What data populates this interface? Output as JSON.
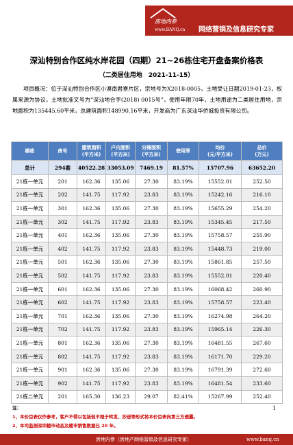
{
  "header": {
    "logo": "房地内参",
    "url": "www.BANQ.cn",
    "slogan": "网络营销及信息研究专家"
  },
  "title": "深汕特别合作区纯水岸花园（四期）21~26栋住宅开盘备案价格表",
  "subtitle": "（二类居住用地　2021-11-15）",
  "overview": "项目概况：位于深汕特别合作区小漠南君寮片区，宗地号为X2018-0005，土地受让日期2019-01-23，权属来源为协议，土地批准文号为“深汕地合字(2018) 0015号”，使用年限70年，土地用途为二类居住用地，宗地面积为135445.60平米，总建筑面积148990.16平米，开发商为广东深汕华侨城投资有限公司。",
  "table": {
    "columns": [
      "楼栋",
      "房号",
      "建筑面积\n(平方米)",
      "户内面积\n(平方米)",
      "分摊面积\n(平方米)",
      "使用率",
      "均价\n(元/平方米)",
      "总价\n(万元)"
    ],
    "total": [
      "总计",
      "294套",
      "40522.28",
      "33053.09",
      "7469.19",
      "81.57%",
      "15707.96",
      "63652.20"
    ],
    "rows": [
      [
        "21栋一单元",
        "201",
        "162.36",
        "135.06",
        "27.30",
        "83.19%",
        "15552.01",
        "252.50"
      ],
      [
        "21栋一单元",
        "202",
        "141.75",
        "117.92",
        "23.83",
        "83.19%",
        "15242.16",
        "216.10"
      ],
      [
        "21栋一单元",
        "301",
        "162.36",
        "135.06",
        "27.30",
        "83.19%",
        "15655.29",
        "254.20"
      ],
      [
        "21栋一单元",
        "302",
        "141.75",
        "117.92",
        "23.83",
        "83.19%",
        "15345.45",
        "217.50"
      ],
      [
        "21栋一单元",
        "401",
        "162.36",
        "135.06",
        "27.30",
        "83.19%",
        "15758.57",
        "255.90"
      ],
      [
        "21栋一单元",
        "402",
        "141.75",
        "117.92",
        "23.83",
        "83.19%",
        "15448.73",
        "219.00"
      ],
      [
        "21栋一单元",
        "501",
        "162.36",
        "135.06",
        "27.30",
        "83.19%",
        "15861.85",
        "257.50"
      ],
      [
        "21栋一单元",
        "502",
        "141.75",
        "117.92",
        "23.83",
        "83.19%",
        "15552.01",
        "220.40"
      ],
      [
        "21栋一单元",
        "601",
        "162.36",
        "135.06",
        "27.30",
        "83.19%",
        "16068.42",
        "260.90"
      ],
      [
        "21栋一单元",
        "602",
        "141.75",
        "117.92",
        "23.83",
        "83.19%",
        "15758.57",
        "223.40"
      ],
      [
        "21栋一单元",
        "701",
        "162.36",
        "135.06",
        "27.30",
        "83.19%",
        "16274.98",
        "264.20"
      ],
      [
        "21栋一单元",
        "702",
        "141.75",
        "117.92",
        "23.83",
        "83.19%",
        "15965.14",
        "226.30"
      ],
      [
        "21栋一单元",
        "801",
        "162.36",
        "135.06",
        "27.30",
        "83.19%",
        "16481.55",
        "267.60"
      ],
      [
        "21栋一单元",
        "802",
        "141.75",
        "117.92",
        "23.83",
        "83.19%",
        "16171.70",
        "229.20"
      ],
      [
        "21栋一单元",
        "901",
        "162.36",
        "135.06",
        "27.30",
        "83.19%",
        "16791.39",
        "272.60"
      ],
      [
        "21栋一单元",
        "902",
        "141.75",
        "117.92",
        "23.83",
        "83.19%",
        "16481.54",
        "233.60"
      ],
      [
        "21栋二单元",
        "201",
        "165.30",
        "136.23",
        "29.07",
        "82.41%",
        "15267.99",
        "252.40"
      ]
    ]
  },
  "notes": {
    "label": "注：",
    "items": [
      "1、本价目表仅作参考，客户不得以包括但不限于转发、抄送等形式将本价目表向第三方透露。",
      "2、本司监测深圳楼市动态及楼市销售数据已 20 年。"
    ]
  },
  "page_number": "1",
  "footer": {
    "brand": "房地内参（房地产网络营销及信息研究专家）",
    "url": "www.banq.cn"
  }
}
